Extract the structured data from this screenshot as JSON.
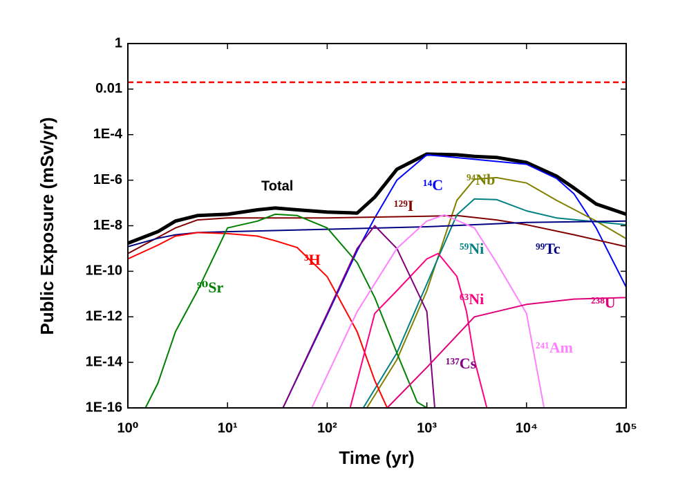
{
  "chart_data": {
    "type": "line",
    "x_label": "Time (yr)",
    "y_label": "Public Exposure (mSv/yr)",
    "xscale": "log",
    "yscale": "log",
    "xlim": [
      1,
      100000
    ],
    "ylim": [
      1e-16,
      1
    ],
    "xticks": [
      {
        "value": 1,
        "label": "10⁰"
      },
      {
        "value": 10,
        "label": "10¹"
      },
      {
        "value": 100,
        "label": "10²"
      },
      {
        "value": 1000,
        "label": "10³"
      },
      {
        "value": 10000,
        "label": "10⁴"
      },
      {
        "value": 100000,
        "label": "10⁵"
      }
    ],
    "yticks": [
      1,
      0.01,
      {
        "value": 0.0001,
        "label": "1E-4"
      },
      {
        "value": 1e-06,
        "label": "1E-6"
      },
      {
        "value": 1e-08,
        "label": "1E-8"
      },
      {
        "value": 1e-10,
        "label": "1E-10"
      },
      {
        "value": 1e-12,
        "label": "1E-12"
      },
      {
        "value": 1e-14,
        "label": "1E-14"
      },
      {
        "value": 1e-16,
        "label": "1E-16"
      }
    ],
    "reference_line": {
      "y": 0.02,
      "color": "#ff0000"
    },
    "series": [
      {
        "name": "Total",
        "color": "#000000",
        "x": [
          1,
          2,
          3,
          5,
          10,
          20,
          30,
          50,
          100,
          200,
          300,
          500,
          1000,
          2000,
          3000,
          5000,
          10000,
          20000,
          30000,
          50000,
          100000
        ],
        "values": [
          1.7e-09,
          5.5e-09,
          1.6e-08,
          2.8e-08,
          3.2e-08,
          5e-08,
          6e-08,
          5e-08,
          4e-08,
          3.6e-08,
          1.8e-07,
          3e-06,
          1.4e-05,
          1.3e-05,
          1.1e-05,
          1e-05,
          6e-06,
          1.5e-06,
          4.5e-07,
          9e-08,
          3.2e-08
        ]
      },
      {
        "name": "¹⁴C",
        "color": "#0000ff",
        "x": [
          36,
          100,
          200,
          300,
          500,
          1000,
          10000,
          20000,
          30000,
          50000,
          100000
        ],
        "values": [
          1e-16,
          1.2e-12,
          8e-10,
          2.2e-08,
          1e-06,
          1.3e-05,
          5e-06,
          1.2e-06,
          2.5e-07,
          8e-09,
          2e-11
        ]
      },
      {
        "name": "⁹⁴Nb",
        "color": "#808000",
        "x": [
          250,
          500,
          1000,
          2000,
          3000,
          5000,
          10000,
          20000,
          50000,
          100000
        ],
        "values": [
          1e-16,
          1.3e-14,
          1.4e-11,
          1.3e-07,
          1.1e-06,
          1.3e-06,
          7.5e-07,
          1.3e-07,
          1.6e-08,
          2.7e-09
        ]
      },
      {
        "name": "¹²⁹I",
        "color": "#800000",
        "x": [
          1,
          3,
          5,
          10,
          100,
          1000,
          2000,
          5000,
          10000,
          30000,
          100000
        ],
        "values": [
          6e-10,
          8e-09,
          1.8e-08,
          2.2e-08,
          2.2e-08,
          2.6e-08,
          2.8e-08,
          1.8e-08,
          1.1e-08,
          4e-09,
          1.2e-09
        ]
      },
      {
        "name": "⁵⁹Ni",
        "color": "#008080",
        "x": [
          230,
          500,
          1000,
          2000,
          3000,
          5000,
          10000,
          20000,
          100000
        ],
        "values": [
          1e-16,
          2.6e-14,
          2.8e-11,
          3e-08,
          1.5e-07,
          1.4e-07,
          4.5e-08,
          2.2e-08,
          1.1e-08
        ]
      },
      {
        "name": "⁹⁹Tc",
        "color": "#000080",
        "x": [
          1,
          2,
          3,
          5,
          10,
          100,
          1000,
          10000,
          100000
        ],
        "values": [
          1.2e-09,
          2.8e-09,
          4e-09,
          5e-09,
          5.5e-09,
          7e-09,
          9e-09,
          1.4e-08,
          1.6e-08
        ]
      },
      {
        "name": "³H",
        "color": "#ff0000",
        "x": [
          1,
          2,
          3,
          5,
          10,
          20,
          30,
          50,
          100,
          200,
          300,
          400
        ],
        "values": [
          3.5e-10,
          1.4e-09,
          3.5e-09,
          5e-09,
          4.5e-09,
          3.5e-09,
          2.2e-09,
          1.1e-09,
          5.8e-11,
          2.2e-13,
          1.6e-15,
          1e-16
        ]
      },
      {
        "name": "⁹⁰Sr",
        "color": "#008000",
        "x": [
          1.5,
          2,
          3,
          5,
          10,
          20,
          30,
          50,
          100,
          200,
          300,
          500,
          800,
          1000
        ],
        "values": [
          1e-16,
          1.2e-15,
          2.2e-13,
          1.4e-11,
          8e-09,
          1.6e-08,
          3.2e-08,
          2.8e-08,
          8e-09,
          2.4e-10,
          7e-12,
          2.6e-14,
          1.8e-16,
          1e-16
        ]
      },
      {
        "name": "⁶³Ni",
        "color": "#ff0080",
        "x": [
          170,
          300,
          500,
          1000,
          1300,
          2000,
          2500,
          3000,
          4000
        ],
        "values": [
          1e-16,
          1.4e-12,
          1.4e-11,
          3.5e-10,
          6e-10,
          6e-11,
          1.7e-12,
          1.3e-14,
          1e-16
        ]
      },
      {
        "name": "¹³⁷Cs",
        "color": "#800080",
        "x": [
          36,
          100,
          200,
          300,
          500,
          1000,
          1200
        ],
        "values": [
          1e-16,
          1.4e-12,
          1e-09,
          1e-08,
          1e-09,
          1.7e-12,
          1e-16
        ]
      },
      {
        "name": "²⁴¹Am",
        "color": "#ff80ff",
        "x": [
          70,
          200,
          500,
          1000,
          1500,
          3000,
          5000,
          10000,
          15000
        ],
        "values": [
          1e-16,
          1.7e-12,
          1e-09,
          1.6e-08,
          3e-08,
          8e-09,
          2.4e-10,
          1.4e-12,
          1e-16
        ]
      },
      {
        "name": "²³⁸U",
        "color": "#e0007a",
        "x": [
          400,
          1000,
          3000,
          10000,
          30000,
          100000
        ],
        "values": [
          1e-16,
          6e-15,
          1e-12,
          3.5e-12,
          6e-12,
          7e-12
        ]
      }
    ]
  }
}
